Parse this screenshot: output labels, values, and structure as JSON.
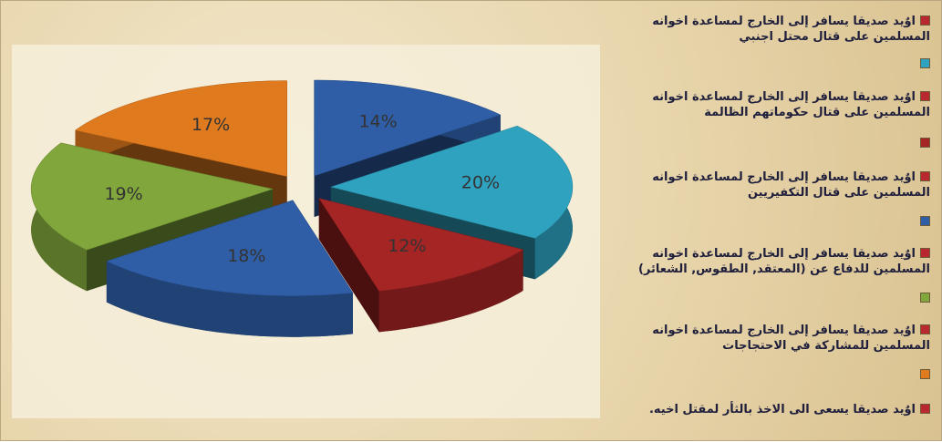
{
  "chart_data": {
    "type": "pie",
    "categories": [
      "اوٌيد صديقا يسافر إلى الخارج لمساعدة اخوانه المسلمين على قتال محتل اجنبي",
      "اوٌيد صديقا يسافر إلى الخارج لمساعدة اخوانه المسلمين على قتال حكوماتهم الظالمة",
      "اوٌيد صديقا يسافر إلى الخارج لمساعدة اخوانه المسلمين على قتال التكفيريين",
      "اوٌيد صديقا يسافر إلى الخارج لمساعدة اخوانه المسلمين للدفاع عن (المعتقد, الطقوس, الشعائر)",
      "اوٌيد صديقا يسافر إلى الخارج لمساعدة اخوانه المسلمين للمشاركة في الاحتجاجات",
      "اوٌيد صديقا يسعى الى الاخذ بالثأر لمقتل اخيه."
    ],
    "values": [
      14,
      20,
      12,
      18,
      19,
      17
    ],
    "value_labels": [
      "14%",
      "20%",
      "12%",
      "18%",
      "19%",
      "17%"
    ],
    "colors": [
      "#2f5ea6",
      "#2fa2bf",
      "#a52424",
      "#2f5ea6",
      "#80a63c",
      "#e07a1e"
    ],
    "legend_marker_color": "#b8282e"
  }
}
